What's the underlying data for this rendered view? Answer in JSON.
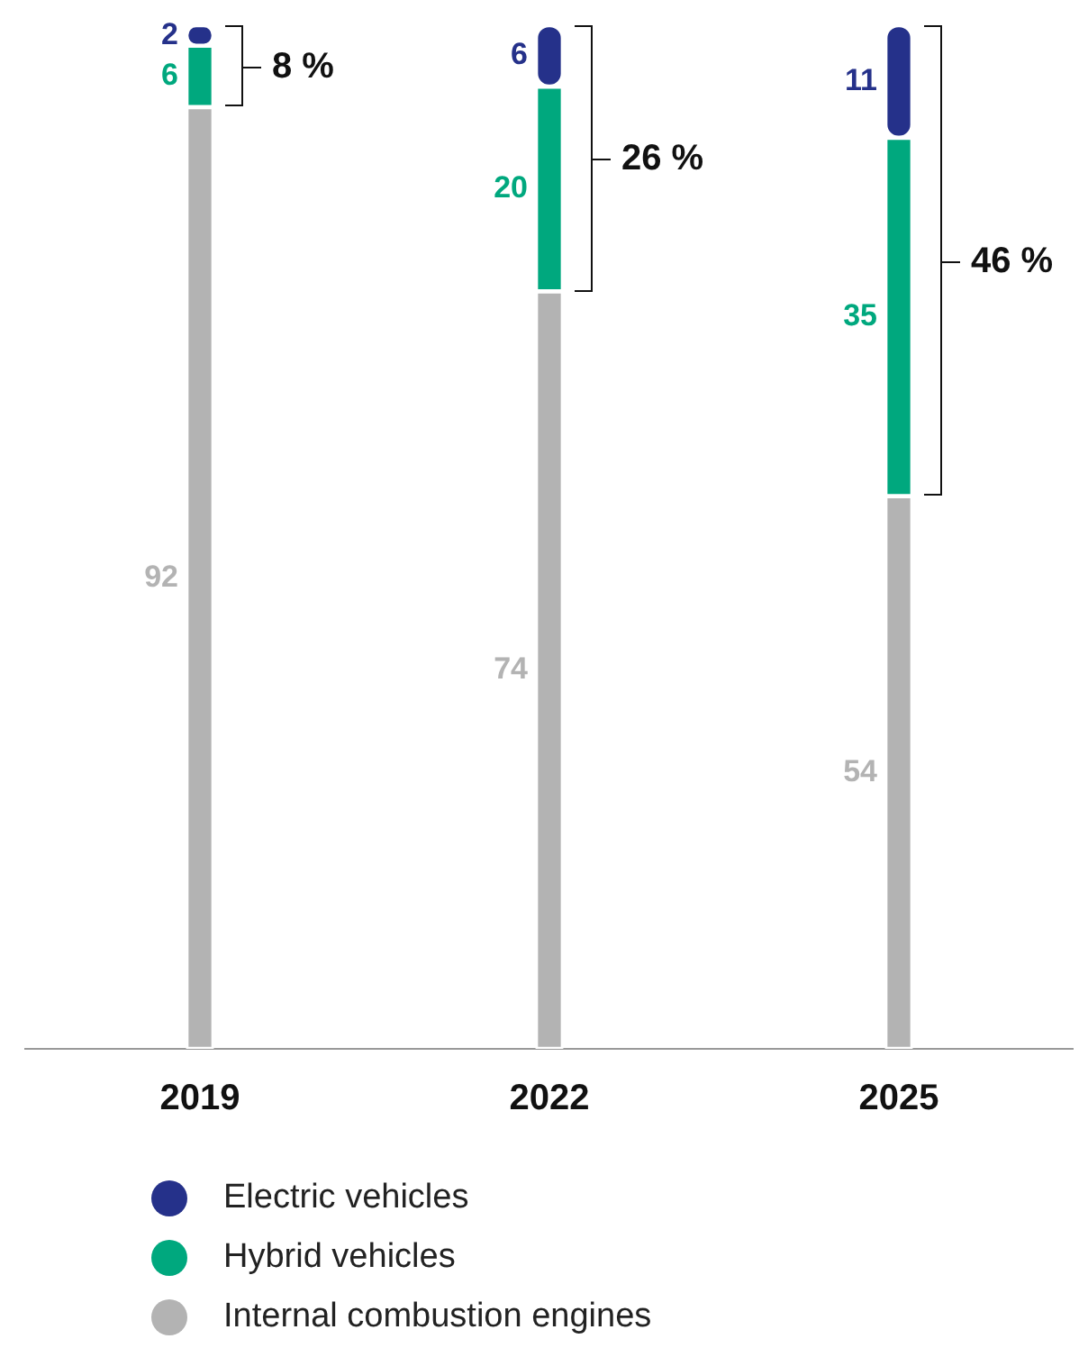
{
  "chart_data": {
    "type": "bar",
    "stacked": true,
    "categories": [
      "2019",
      "2022",
      "2025"
    ],
    "series": [
      {
        "name": "Internal combustion engines",
        "color": "#b3b3b3",
        "values": [
          92,
          74,
          54
        ]
      },
      {
        "name": "Hybrid vehicles",
        "color": "#00a87e",
        "values": [
          6,
          20,
          35
        ]
      },
      {
        "name": "Electric vehicles",
        "color": "#25318a",
        "values": [
          2,
          6,
          11
        ]
      }
    ],
    "data_labels": true,
    "tick_labels": "x",
    "grid": false,
    "legend": "bottom",
    "annotations": [
      "8 %",
      "26 %",
      "46 %"
    ]
  }
}
